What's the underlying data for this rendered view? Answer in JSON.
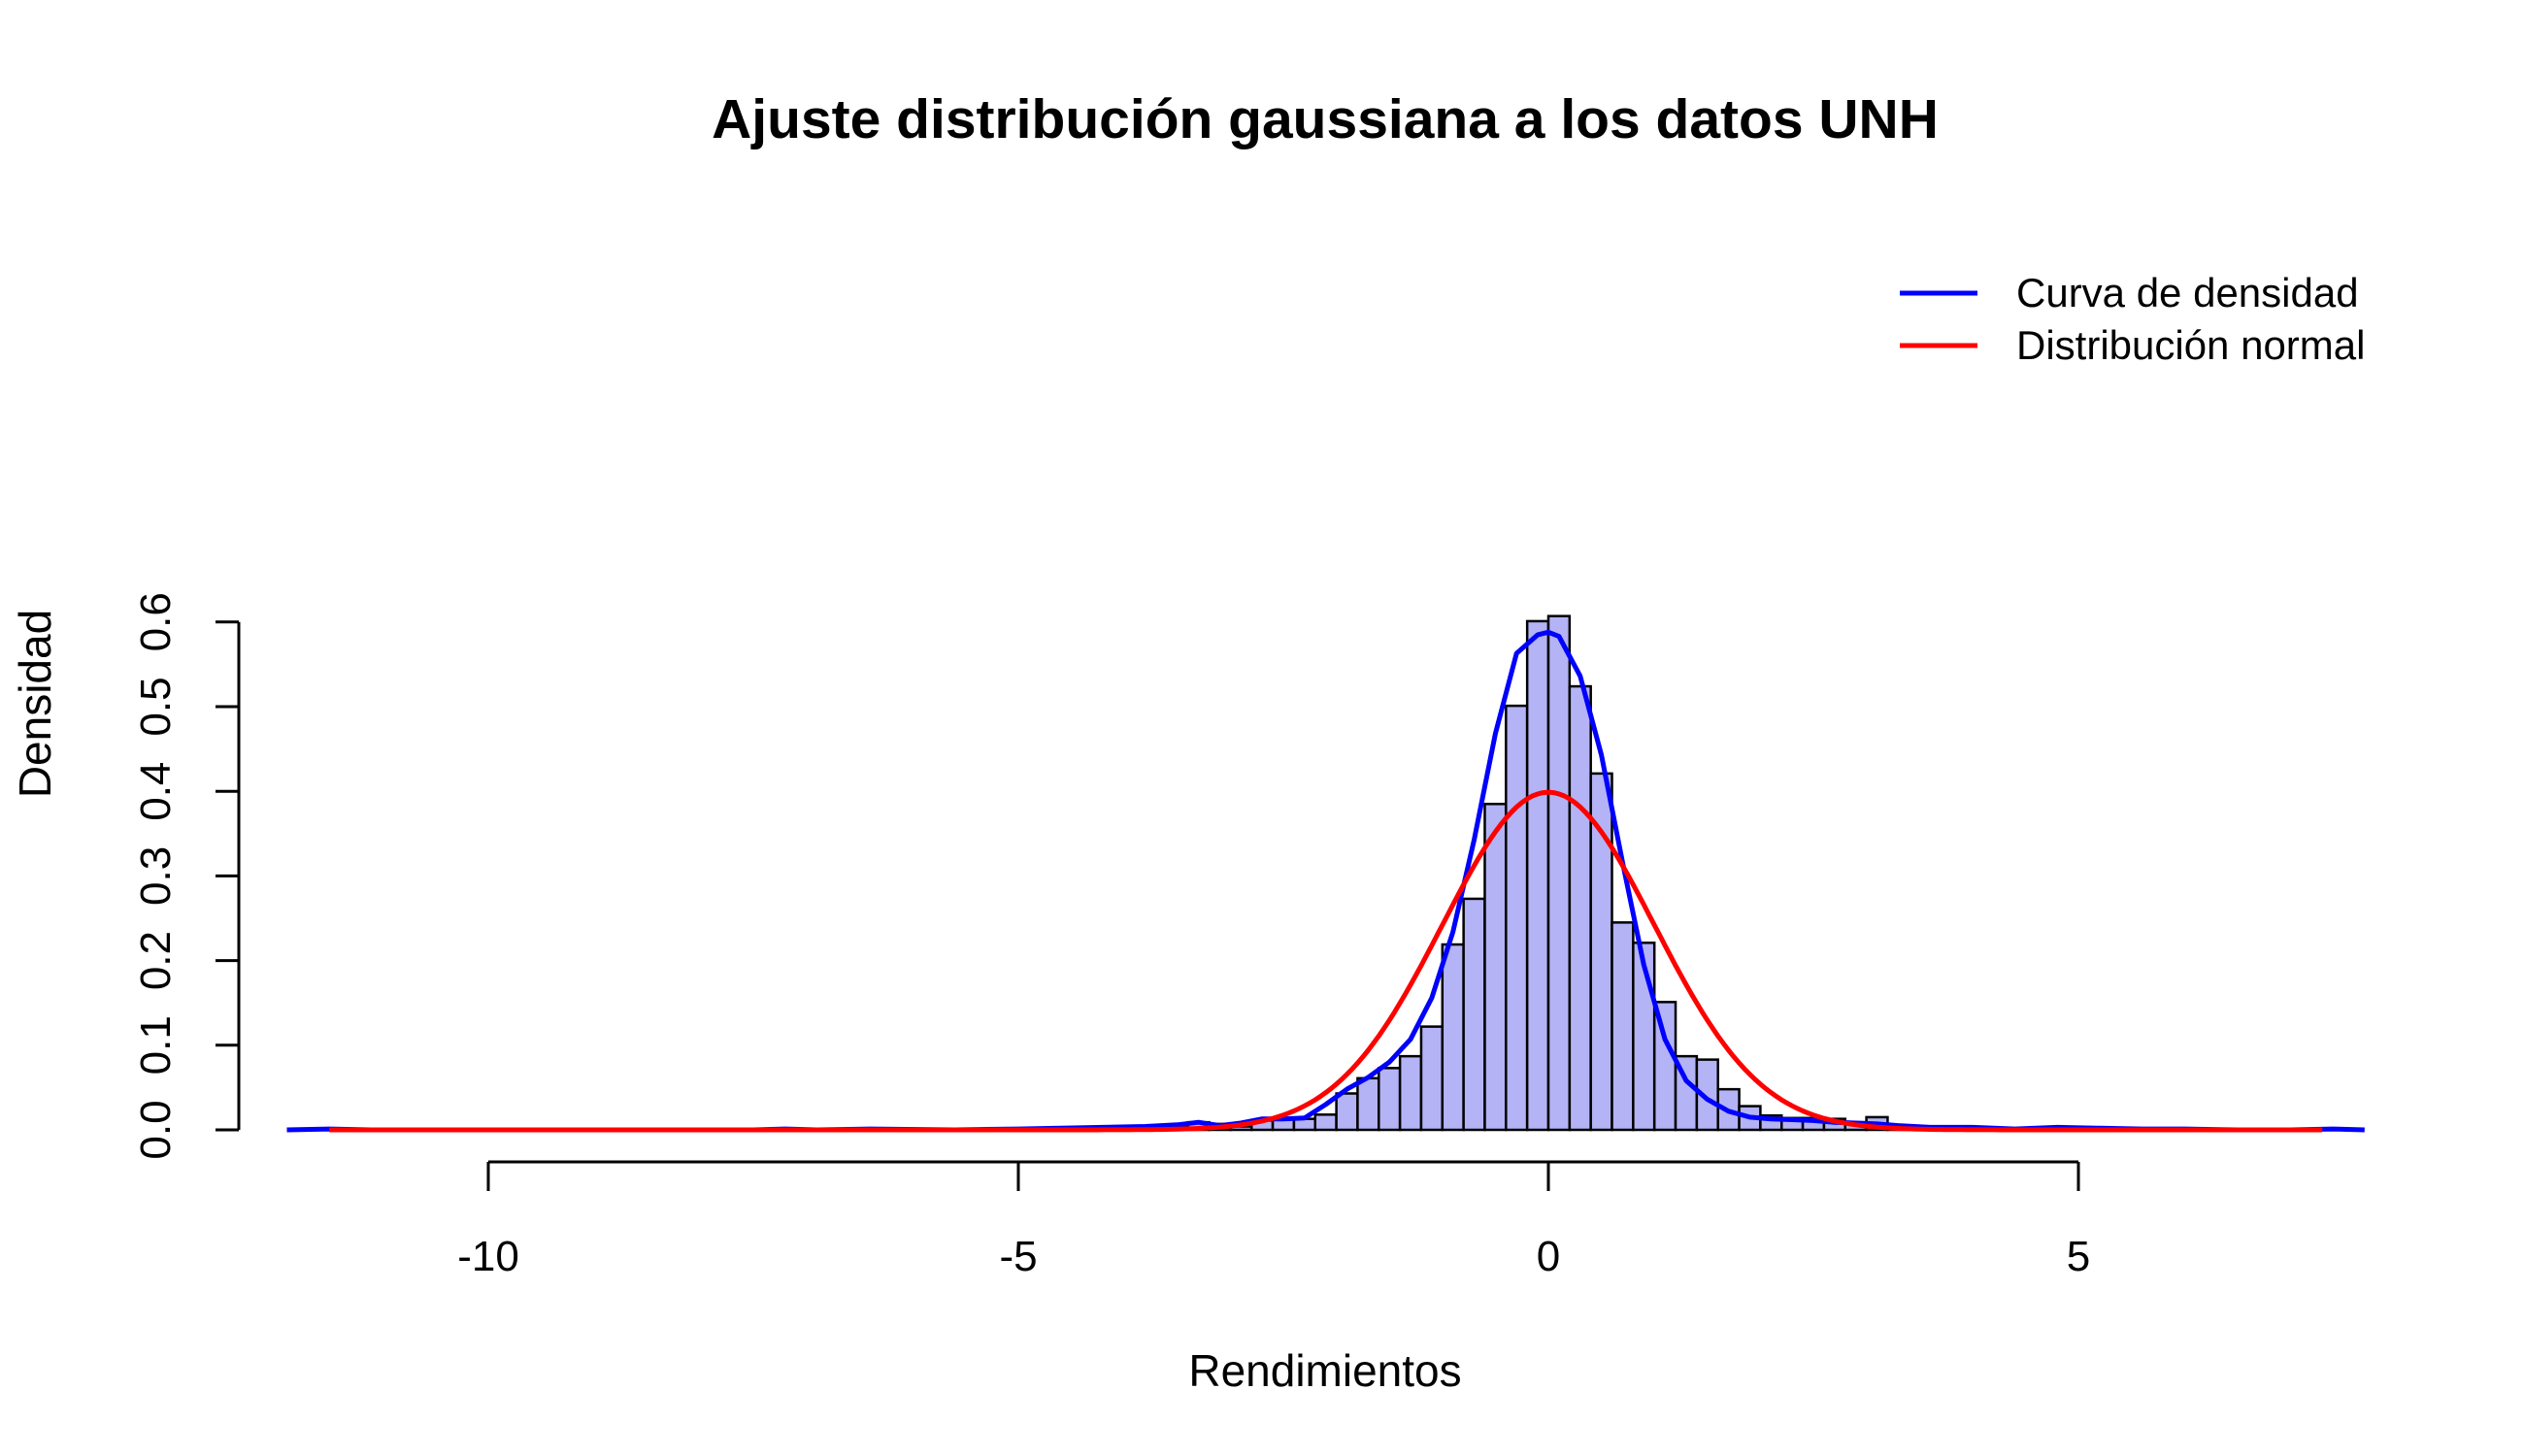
{
  "chart_data": {
    "type": "bar",
    "title": "Ajuste distribución gaussiana a los datos UNH",
    "xlabel": "Rendimientos",
    "ylabel": "Densidad",
    "xlim": [
      -12,
      7.7
    ],
    "ylim": [
      0,
      0.62
    ],
    "x_ticks": [
      -10,
      -5,
      0,
      5
    ],
    "x_tick_labels": [
      "-10",
      "-5",
      "0",
      "5"
    ],
    "y_ticks": [
      0.0,
      0.1,
      0.2,
      0.3,
      0.4,
      0.5,
      0.6
    ],
    "y_tick_labels": [
      "0.0",
      "0.1",
      "0.2",
      "0.3",
      "0.4",
      "0.5",
      "0.6"
    ],
    "grid": false,
    "legend_position": "top-right",
    "histogram": {
      "bin_width": 0.2,
      "fill_color": "#b3b3f5",
      "bins": [
        [
          -11.4,
          0.001
        ],
        [
          -7.2,
          0.001
        ],
        [
          -6.4,
          0.001
        ],
        [
          -5.0,
          0.001
        ],
        [
          -4.6,
          0.003
        ],
        [
          -4.4,
          0.001
        ],
        [
          -4.2,
          0.003
        ],
        [
          -4.0,
          0.003
        ],
        [
          -3.8,
          0.003
        ],
        [
          -3.6,
          0.004
        ],
        [
          -3.4,
          0.009
        ],
        [
          -3.2,
          0.007
        ],
        [
          -3.0,
          0.004
        ],
        [
          -2.8,
          0.011
        ],
        [
          -2.6,
          0.014
        ],
        [
          -2.4,
          0.013
        ],
        [
          -2.2,
          0.018
        ],
        [
          -2.0,
          0.043
        ],
        [
          -1.8,
          0.061
        ],
        [
          -1.6,
          0.073
        ],
        [
          -1.4,
          0.087
        ],
        [
          -1.2,
          0.122
        ],
        [
          -1.0,
          0.219
        ],
        [
          -0.8,
          0.273
        ],
        [
          -0.6,
          0.385
        ],
        [
          -0.4,
          0.501
        ],
        [
          -0.2,
          0.601
        ],
        [
          0.0,
          0.607
        ],
        [
          0.2,
          0.524
        ],
        [
          0.4,
          0.421
        ],
        [
          0.6,
          0.245
        ],
        [
          0.8,
          0.221
        ],
        [
          1.0,
          0.151
        ],
        [
          1.2,
          0.087
        ],
        [
          1.4,
          0.083
        ],
        [
          1.6,
          0.048
        ],
        [
          1.8,
          0.028
        ],
        [
          2.0,
          0.017
        ],
        [
          2.2,
          0.014
        ],
        [
          2.4,
          0.014
        ],
        [
          2.6,
          0.013
        ],
        [
          2.8,
          0.009
        ],
        [
          3.0,
          0.015
        ],
        [
          3.2,
          0.004
        ],
        [
          3.8,
          0.001
        ],
        [
          4.6,
          0.001
        ]
      ]
    },
    "series": [
      {
        "name": "Curva de densidad",
        "color": "#0000ff",
        "x": [
          -11.9,
          -11.5,
          -11.1,
          -10.5,
          -9.0,
          -7.5,
          -7.2,
          -6.9,
          -6.4,
          -5.6,
          -5.0,
          -4.6,
          -4.2,
          -3.8,
          -3.5,
          -3.3,
          -3.1,
          -2.9,
          -2.7,
          -2.5,
          -2.3,
          -2.1,
          -1.9,
          -1.7,
          -1.5,
          -1.3,
          -1.1,
          -0.9,
          -0.7,
          -0.5,
          -0.3,
          -0.1,
          0.0,
          0.1,
          0.3,
          0.5,
          0.7,
          0.9,
          1.1,
          1.3,
          1.5,
          1.7,
          1.9,
          2.1,
          2.3,
          2.5,
          2.7,
          2.9,
          3.1,
          3.3,
          3.6,
          4.0,
          4.4,
          4.8,
          5.2,
          5.6,
          6.0,
          6.5,
          7.0,
          7.4,
          7.7
        ],
        "y": [
          0.0,
          0.001,
          0.0,
          0.0,
          0.0,
          0.0,
          0.001,
          0.0,
          0.001,
          0.0,
          0.001,
          0.002,
          0.003,
          0.004,
          0.006,
          0.009,
          0.005,
          0.008,
          0.013,
          0.013,
          0.014,
          0.03,
          0.048,
          0.062,
          0.08,
          0.107,
          0.156,
          0.234,
          0.343,
          0.468,
          0.563,
          0.585,
          0.588,
          0.583,
          0.536,
          0.443,
          0.316,
          0.195,
          0.107,
          0.058,
          0.036,
          0.022,
          0.015,
          0.013,
          0.012,
          0.011,
          0.009,
          0.008,
          0.007,
          0.005,
          0.003,
          0.003,
          0.001,
          0.003,
          0.002,
          0.001,
          0.001,
          0.0,
          0.0,
          0.001,
          0.0
        ]
      },
      {
        "name": "Distribución normal",
        "color": "#ff0000",
        "distribution": "normal",
        "mean": 0.0,
        "sd": 1.0,
        "x_range": [
          -11.5,
          7.3
        ]
      }
    ]
  }
}
